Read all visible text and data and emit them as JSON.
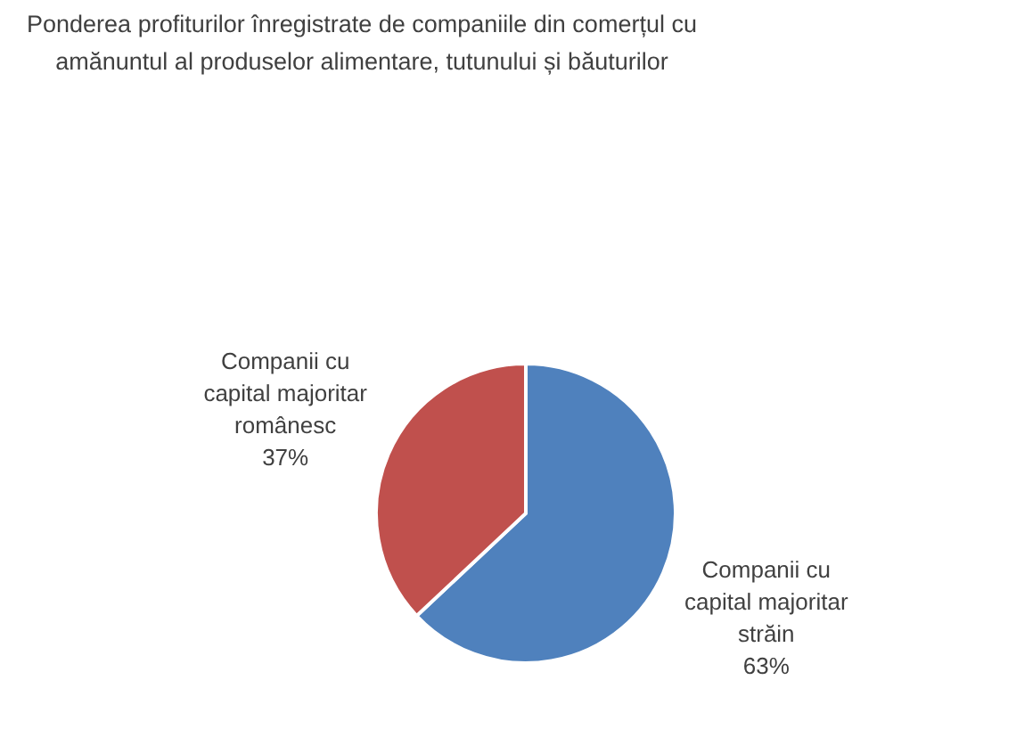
{
  "chart_data": {
    "type": "pie",
    "title": "Ponderea profiturilor înregistrate de companiile din comerțul cu amănuntul al produselor alimentare, tutunului și băuturilor",
    "categories": [
      "Companii cu capital majoritar străin",
      "Companii cu capital majoritar românesc"
    ],
    "values": [
      63,
      37
    ],
    "value_labels": [
      "63%",
      "37%"
    ],
    "colors": [
      "#4f81bd",
      "#c0504d"
    ]
  }
}
